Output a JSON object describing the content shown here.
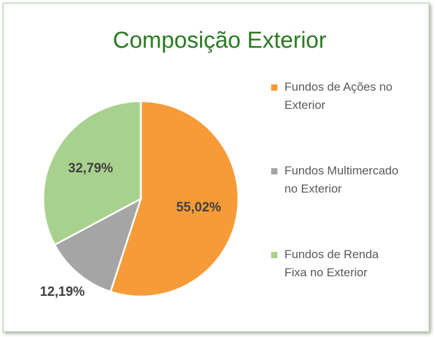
{
  "chart_data": {
    "type": "pie",
    "title": "Composição Exterior",
    "categories": [
      "Fundos de Ações no Exterior",
      "Fundos Multimercado no Exterior",
      "Fundos de Renda Fixa no Exterior"
    ],
    "values": [
      55.02,
      12.19,
      32.79
    ],
    "value_labels": [
      "55,02%",
      "12,19%",
      "32,79%"
    ],
    "colors": [
      "#f79b38",
      "#a5a5a5",
      "#a9d18e"
    ],
    "legend": "right"
  }
}
